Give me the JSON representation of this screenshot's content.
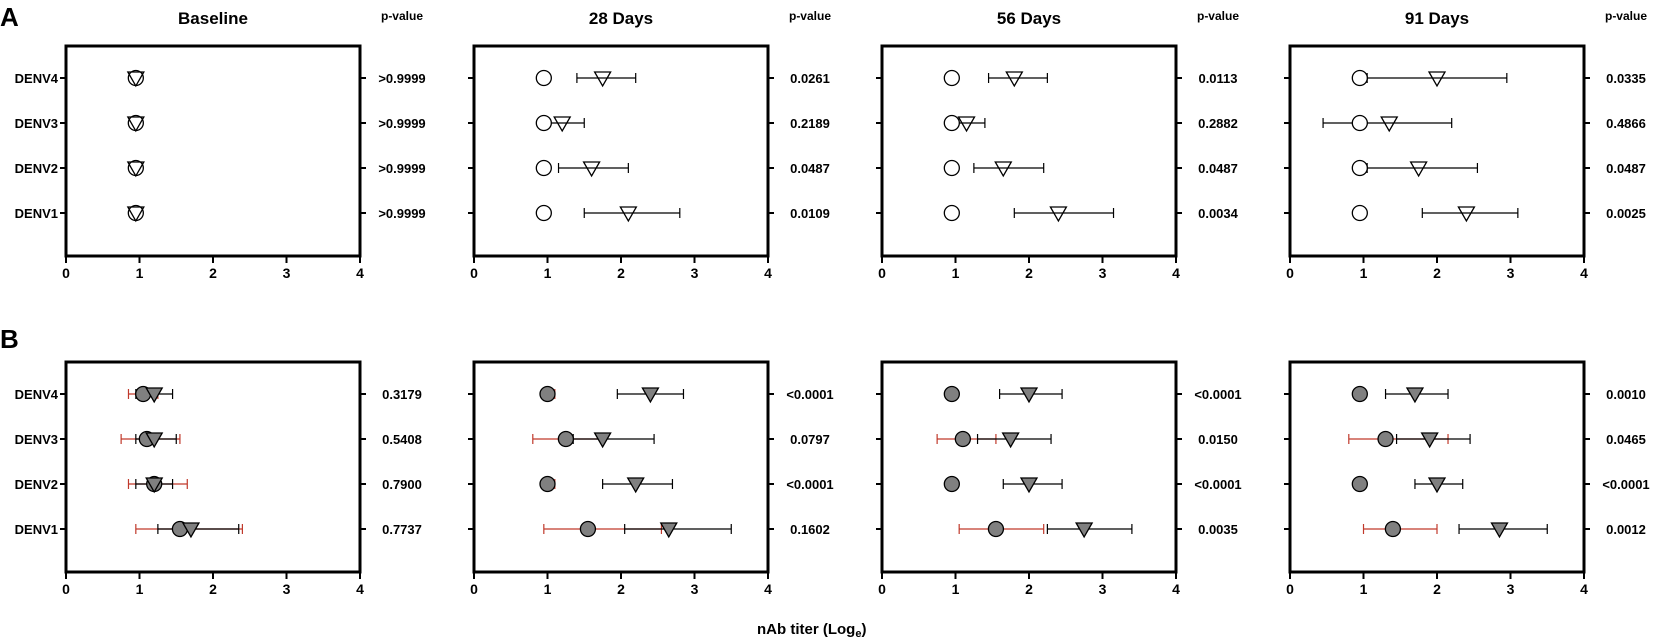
{
  "panel_labels": [
    "A",
    "B"
  ],
  "xlabel_main": "nAb titer (Log",
  "xlabel_sub": "e",
  "xlabel_close": ")",
  "pvalue_header": "p-value",
  "colors": {
    "open_fill": "#ffffff",
    "filled_fill": "#808080",
    "stroke": "#000000",
    "red_error": "#c0392b"
  },
  "chart_data": [
    {
      "row": "A",
      "type": "scatter",
      "title": "Baseline",
      "xlim": [
        0,
        4
      ],
      "xticks": [
        0,
        1,
        2,
        3,
        4
      ],
      "categories": [
        "DENV4",
        "DENV3",
        "DENV2",
        "DENV1"
      ],
      "series": [
        {
          "marker": "circle-open",
          "values": [
            0.95,
            0.95,
            0.95,
            0.95
          ]
        },
        {
          "marker": "triangle-open",
          "values": [
            0.95,
            0.95,
            0.95,
            0.95
          ]
        }
      ],
      "pvalues": [
        ">0.9999",
        ">0.9999",
        ">0.9999",
        ">0.9999"
      ]
    },
    {
      "row": "A",
      "type": "scatter",
      "title": "28 Days",
      "xlim": [
        0,
        4
      ],
      "xticks": [
        0,
        1,
        2,
        3,
        4
      ],
      "categories": [
        "DENV4",
        "DENV3",
        "DENV2",
        "DENV1"
      ],
      "series": [
        {
          "marker": "circle-open",
          "values": [
            0.95,
            0.95,
            0.95,
            0.95
          ],
          "errors": [
            null,
            [
              0.9,
              1.0
            ],
            null,
            null
          ]
        },
        {
          "marker": "triangle-open",
          "values": [
            1.75,
            1.2,
            1.6,
            2.1
          ],
          "errors": [
            [
              1.4,
              2.2
            ],
            [
              0.95,
              1.5
            ],
            [
              1.15,
              2.1
            ],
            [
              1.5,
              2.8
            ]
          ]
        }
      ],
      "pvalues": [
        "0.0261",
        "0.2189",
        "0.0487",
        "0.0109"
      ]
    },
    {
      "row": "A",
      "type": "scatter",
      "title": "56 Days",
      "xlim": [
        0,
        4
      ],
      "xticks": [
        0,
        1,
        2,
        3,
        4
      ],
      "categories": [
        "DENV4",
        "DENV3",
        "DENV2",
        "DENV1"
      ],
      "series": [
        {
          "marker": "circle-open",
          "values": [
            0.95,
            0.95,
            0.95,
            0.95
          ],
          "errors": [
            null,
            [
              0.9,
              1.0
            ],
            null,
            null
          ]
        },
        {
          "marker": "triangle-open",
          "values": [
            1.8,
            1.15,
            1.65,
            2.4
          ],
          "errors": [
            [
              1.45,
              2.25
            ],
            [
              0.95,
              1.4
            ],
            [
              1.25,
              2.2
            ],
            [
              1.8,
              3.15
            ]
          ]
        }
      ],
      "pvalues": [
        "0.0113",
        "0.2882",
        "0.0487",
        "0.0034"
      ]
    },
    {
      "row": "A",
      "type": "scatter",
      "title": "91 Days",
      "xlim": [
        0,
        4
      ],
      "xticks": [
        0,
        1,
        2,
        3,
        4
      ],
      "categories": [
        "DENV4",
        "DENV3",
        "DENV2",
        "DENV1"
      ],
      "series": [
        {
          "marker": "circle-open",
          "values": [
            0.95,
            0.95,
            0.95,
            0.95
          ]
        },
        {
          "marker": "triangle-open",
          "values": [
            2.0,
            1.35,
            1.75,
            2.4
          ],
          "errors": [
            [
              1.05,
              2.95
            ],
            [
              0.45,
              2.2
            ],
            [
              1.05,
              2.55
            ],
            [
              1.8,
              3.1
            ]
          ]
        }
      ],
      "pvalues": [
        "0.0335",
        "0.4866",
        "0.0487",
        "0.0025"
      ]
    },
    {
      "row": "B",
      "type": "scatter",
      "title": "",
      "xlim": [
        0,
        4
      ],
      "xticks": [
        0,
        1,
        2,
        3,
        4
      ],
      "categories": [
        "DENV4",
        "DENV3",
        "DENV2",
        "DENV1"
      ],
      "series": [
        {
          "marker": "circle-filled",
          "values": [
            1.05,
            1.1,
            1.2,
            1.55
          ],
          "errors": [
            [
              0.85,
              1.25
            ],
            [
              0.75,
              1.55
            ],
            [
              0.85,
              1.65
            ],
            [
              0.95,
              2.4
            ]
          ]
        },
        {
          "marker": "triangle-filled",
          "values": [
            1.2,
            1.2,
            1.2,
            1.7
          ],
          "errors": [
            [
              0.95,
              1.45
            ],
            [
              0.95,
              1.5
            ],
            [
              0.95,
              1.45
            ],
            [
              1.25,
              2.35
            ]
          ]
        }
      ],
      "pvalues": [
        "0.3179",
        "0.5408",
        "0.7900",
        "0.7737"
      ]
    },
    {
      "row": "B",
      "type": "scatter",
      "title": "",
      "xlim": [
        0,
        4
      ],
      "xticks": [
        0,
        1,
        2,
        3,
        4
      ],
      "categories": [
        "DENV4",
        "DENV3",
        "DENV2",
        "DENV1"
      ],
      "series": [
        {
          "marker": "circle-filled",
          "values": [
            1.0,
            1.25,
            1.0,
            1.55
          ],
          "errors": [
            [
              0.95,
              1.1
            ],
            [
              0.8,
              1.75
            ],
            [
              0.95,
              1.1
            ],
            [
              0.95,
              2.55
            ]
          ]
        },
        {
          "marker": "triangle-filled",
          "values": [
            2.4,
            1.75,
            2.2,
            2.65
          ],
          "errors": [
            [
              1.95,
              2.85
            ],
            [
              1.35,
              2.45
            ],
            [
              1.75,
              2.7
            ],
            [
              2.05,
              3.5
            ]
          ]
        }
      ],
      "pvalues": [
        "<0.0001",
        "0.0797",
        "<0.0001",
        "0.1602"
      ]
    },
    {
      "row": "B",
      "type": "scatter",
      "title": "",
      "xlim": [
        0,
        4
      ],
      "xticks": [
        0,
        1,
        2,
        3,
        4
      ],
      "categories": [
        "DENV4",
        "DENV3",
        "DENV2",
        "DENV1"
      ],
      "series": [
        {
          "marker": "circle-filled",
          "values": [
            0.95,
            1.1,
            0.95,
            1.55
          ],
          "errors": [
            null,
            [
              0.75,
              1.55
            ],
            null,
            [
              1.05,
              2.2
            ]
          ]
        },
        {
          "marker": "triangle-filled",
          "values": [
            2.0,
            1.75,
            2.0,
            2.75
          ],
          "errors": [
            [
              1.6,
              2.45
            ],
            [
              1.3,
              2.3
            ],
            [
              1.65,
              2.45
            ],
            [
              2.25,
              3.4
            ]
          ]
        }
      ],
      "pvalues": [
        "<0.0001",
        "0.0150",
        "<0.0001",
        "0.0035"
      ]
    },
    {
      "row": "B",
      "type": "scatter",
      "title": "",
      "xlim": [
        0,
        4
      ],
      "xticks": [
        0,
        1,
        2,
        3,
        4
      ],
      "categories": [
        "DENV4",
        "DENV3",
        "DENV2",
        "DENV1"
      ],
      "series": [
        {
          "marker": "circle-filled",
          "values": [
            0.95,
            1.3,
            0.95,
            1.4
          ],
          "errors": [
            null,
            [
              0.8,
              2.15
            ],
            null,
            [
              1.0,
              2.0
            ]
          ]
        },
        {
          "marker": "triangle-filled",
          "values": [
            1.7,
            1.9,
            2.0,
            2.85
          ],
          "errors": [
            [
              1.3,
              2.15
            ],
            [
              1.45,
              2.45
            ],
            [
              1.7,
              2.35
            ],
            [
              2.3,
              3.5
            ]
          ]
        }
      ],
      "pvalues": [
        "0.0010",
        "0.0465",
        "<0.0001",
        "0.0012"
      ]
    }
  ]
}
